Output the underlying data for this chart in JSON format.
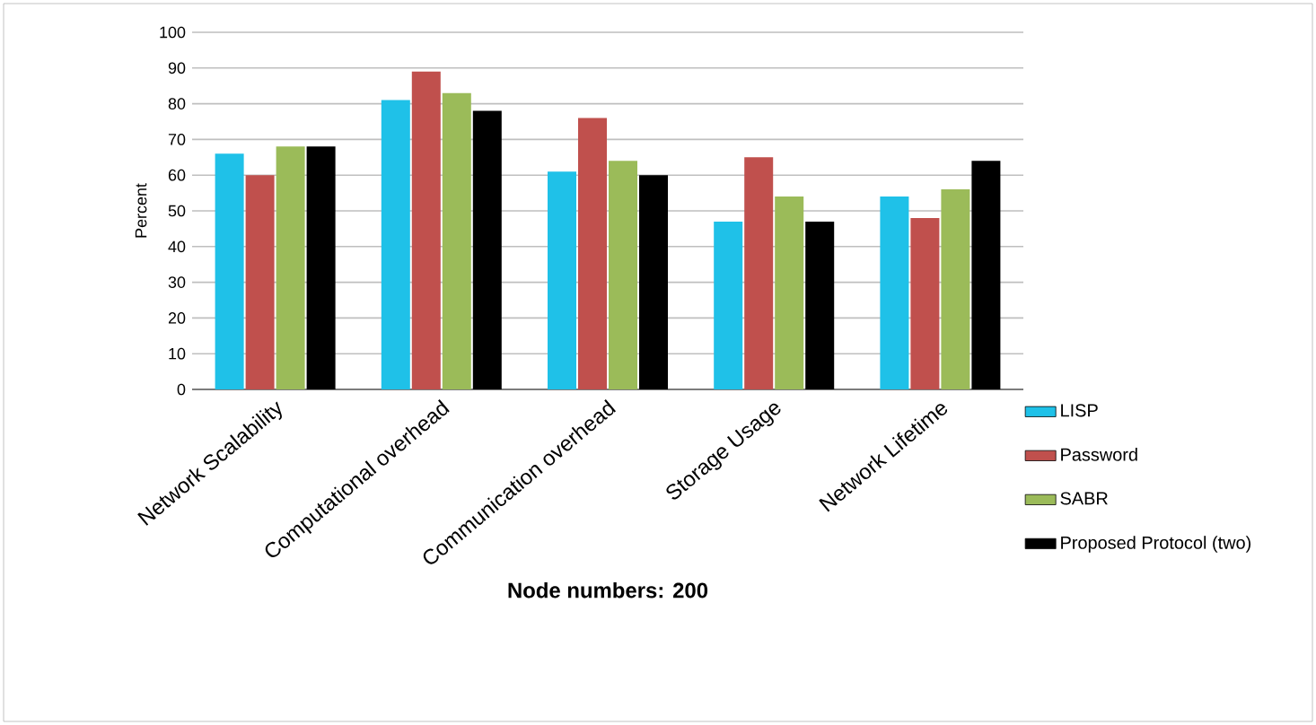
{
  "chart_data": {
    "type": "bar",
    "xlabel": "Node numbers: 200",
    "ylabel": "Percent",
    "categories": [
      "Network Scalability",
      "Computational overhead",
      "Communication overhead",
      "Storage Usage",
      "Network Lifetime"
    ],
    "series": [
      {
        "name": "LISP",
        "color": "#1fc1e8",
        "values": [
          66,
          81,
          61,
          47,
          54
        ]
      },
      {
        "name": "Password",
        "color": "#c0504d",
        "values": [
          60,
          89,
          76,
          65,
          48
        ]
      },
      {
        "name": "SABR",
        "color": "#9bbb59",
        "values": [
          68,
          83,
          64,
          54,
          56
        ]
      },
      {
        "name": "Proposed Protocol (two)",
        "color": "#000000",
        "values": [
          68,
          78,
          60,
          47,
          64
        ]
      }
    ],
    "ylim": [
      0,
      100
    ],
    "yticks": [
      0,
      10,
      20,
      30,
      40,
      50,
      60,
      70,
      80,
      90,
      100
    ],
    "grid": "y",
    "legend": "bottom right"
  }
}
